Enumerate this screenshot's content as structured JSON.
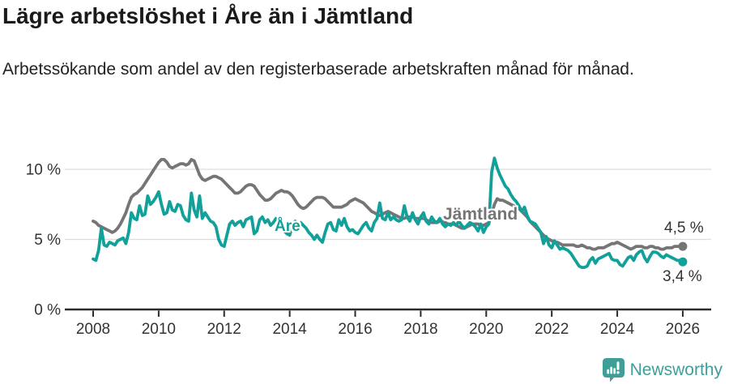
{
  "header": {
    "title": "Lägre arbetslöshet i Åre än i Jämtland",
    "subtitle": "Arbetssökande som andel av den registerbaserade arbetskraften månad för månad."
  },
  "footer": {
    "brand": "Newsworthy",
    "logo_icon": "newsworthy-chart-bubble-icon"
  },
  "colors": {
    "are_line": "#12a19a",
    "jamtland_line": "#757575",
    "grid": "#dddddd",
    "axis": "#2b2b2b",
    "tick_text": "#333333",
    "title_text": "#1a1a1a",
    "brand": "#3f9e98"
  },
  "chart_data": {
    "type": "line",
    "title": "Lägre arbetslöshet i Åre än i Jämtland",
    "xlabel": "",
    "ylabel": "",
    "unit": "%",
    "frequency": "monthly",
    "x_start_year": 2008,
    "x_start_month": 1,
    "x_ticks": [
      2008,
      2010,
      2012,
      2014,
      2016,
      2018,
      2020,
      2022,
      2024,
      2026
    ],
    "y_ticks": [
      {
        "value": 0,
        "label": "0 %"
      },
      {
        "value": 5,
        "label": "5 %"
      },
      {
        "value": 10,
        "label": "10 %"
      }
    ],
    "ylim": [
      0,
      11.5
    ],
    "grid": "horizontal",
    "legend_position": "inline-labels",
    "series": [
      {
        "name": "Jämtland",
        "color": "#757575",
        "end_label": "4,5 %",
        "end_value": 4.5,
        "label_annotation": {
          "text": "Jämtland",
          "x": 2018.7,
          "y": 6.6
        },
        "values": [
          6.3,
          6.2,
          6.0,
          5.9,
          5.8,
          5.7,
          5.6,
          5.5,
          5.6,
          5.8,
          6.1,
          6.5,
          6.9,
          7.5,
          8.0,
          8.2,
          8.3,
          8.5,
          8.7,
          9.0,
          9.3,
          9.6,
          9.9,
          10.2,
          10.5,
          10.7,
          10.7,
          10.5,
          10.2,
          10.1,
          10.2,
          10.3,
          10.4,
          10.4,
          10.3,
          10.4,
          10.7,
          10.6,
          10.1,
          9.6,
          9.3,
          9.2,
          9.3,
          9.4,
          9.5,
          9.5,
          9.4,
          9.3,
          9.1,
          8.9,
          8.7,
          8.5,
          8.3,
          8.3,
          8.4,
          8.6,
          8.8,
          8.9,
          8.9,
          8.8,
          8.5,
          8.2,
          8.0,
          7.8,
          7.8,
          7.9,
          8.1,
          8.3,
          8.4,
          8.5,
          8.4,
          8.4,
          8.3,
          8.1,
          7.8,
          7.5,
          7.3,
          7.2,
          7.3,
          7.5,
          7.7,
          7.9,
          8.0,
          8.0,
          8.0,
          7.9,
          7.7,
          7.5,
          7.3,
          7.3,
          7.3,
          7.3,
          7.4,
          7.5,
          7.7,
          7.8,
          7.9,
          7.8,
          7.7,
          7.6,
          7.4,
          7.2,
          7.0,
          6.9,
          6.8,
          6.7,
          6.8,
          6.9,
          7.0,
          6.9,
          6.8,
          6.7,
          6.6,
          6.5,
          6.5,
          6.6,
          6.6,
          6.6,
          6.5,
          6.5,
          6.5,
          6.5,
          6.4,
          6.3,
          6.2,
          6.2,
          6.2,
          6.3,
          6.3,
          6.2,
          6.1,
          6.1,
          6.1,
          6.0,
          5.9,
          5.8,
          5.8,
          5.9,
          6.0,
          6.1,
          6.1,
          6.1,
          6.0,
          6.0,
          6.1,
          6.2,
          6.8,
          7.5,
          7.9,
          7.8,
          7.8,
          7.7,
          7.6,
          7.5,
          7.4,
          7.3,
          7.2,
          7.0,
          6.8,
          6.6,
          6.3,
          6.1,
          5.9,
          5.7,
          5.5,
          5.3,
          5.1,
          5.0,
          4.9,
          4.8,
          4.8,
          4.7,
          4.6,
          4.6,
          4.6,
          4.6,
          4.6,
          4.5,
          4.5,
          4.6,
          4.5,
          4.4,
          4.4,
          4.3,
          4.3,
          4.4,
          4.4,
          4.4,
          4.5,
          4.6,
          4.7,
          4.7,
          4.8,
          4.7,
          4.6,
          4.5,
          4.4,
          4.3,
          4.4,
          4.5,
          4.5,
          4.5,
          4.4,
          4.4,
          4.5,
          4.5,
          4.4,
          4.4,
          4.3,
          4.3,
          4.4,
          4.4,
          4.4,
          4.5,
          4.5,
          4.5,
          4.5
        ]
      },
      {
        "name": "Åre",
        "color": "#12a19a",
        "end_label": "3,4 %",
        "end_value": 3.4,
        "label_annotation": {
          "text": "Åre",
          "x": 2013.6,
          "y": 5.9
        },
        "values": [
          3.6,
          3.5,
          4.2,
          5.8,
          4.6,
          4.5,
          4.8,
          4.7,
          4.6,
          4.9,
          5.0,
          5.1,
          4.7,
          5.5,
          6.9,
          6.5,
          6.4,
          7.4,
          6.7,
          6.8,
          8.1,
          7.5,
          7.7,
          8.0,
          8.4,
          7.5,
          6.8,
          6.9,
          7.7,
          7.1,
          7.0,
          7.5,
          7.4,
          6.7,
          6.4,
          6.3,
          8.3,
          7.1,
          6.6,
          8.1,
          6.5,
          6.9,
          6.6,
          6.3,
          6.2,
          5.9,
          5.0,
          4.6,
          4.5,
          5.3,
          6.1,
          6.3,
          6.0,
          6.2,
          6.3,
          5.9,
          6.4,
          6.5,
          6.6,
          5.4,
          5.6,
          6.4,
          6.6,
          6.2,
          6.4,
          6.0,
          6.2,
          6.5,
          6.4,
          6.3,
          5.6,
          5.4,
          5.3,
          6.0,
          6.3,
          6.1,
          6.2,
          6.0,
          5.8,
          5.5,
          5.3,
          5.0,
          5.3,
          5.0,
          4.8,
          5.5,
          6.1,
          6.2,
          5.7,
          5.6,
          6.4,
          6.0,
          6.5,
          5.9,
          5.6,
          5.7,
          5.5,
          5.4,
          5.7,
          6.0,
          6.2,
          5.8,
          5.6,
          6.2,
          6.5,
          7.6,
          6.5,
          6.4,
          6.9,
          6.4,
          6.6,
          6.4,
          6.3,
          6.4,
          7.4,
          6.6,
          6.3,
          6.9,
          6.4,
          6.1,
          6.6,
          6.9,
          6.3,
          6.1,
          6.6,
          6.3,
          6.2,
          6.5,
          6.1,
          5.9,
          6.1,
          6.0,
          6.2,
          6.0,
          6.3,
          6.0,
          5.8,
          6.0,
          6.2,
          6.1,
          5.9,
          5.6,
          6.1,
          5.5,
          5.9,
          6.1,
          9.8,
          10.8,
          10.1,
          9.6,
          9.2,
          8.8,
          8.6,
          8.2,
          7.9,
          7.7,
          7.4,
          7.0,
          7.3,
          6.7,
          6.3,
          6.2,
          6.1,
          5.8,
          5.5,
          4.7,
          5.2,
          4.6,
          4.4,
          4.9,
          4.6,
          4.3,
          4.4,
          4.3,
          4.2,
          4.0,
          3.7,
          3.4,
          3.1,
          3.0,
          3.0,
          3.1,
          3.5,
          3.7,
          3.3,
          3.6,
          3.7,
          3.8,
          3.9,
          4.0,
          3.6,
          3.5,
          3.5,
          3.2,
          3.1,
          3.4,
          3.7,
          3.8,
          3.5,
          3.9,
          4.1,
          4.2,
          3.7,
          3.4,
          3.8,
          4.1,
          4.1,
          4.0,
          3.8,
          3.7,
          3.9,
          3.8,
          3.7,
          3.6,
          3.5,
          3.5,
          3.4
        ]
      }
    ]
  }
}
